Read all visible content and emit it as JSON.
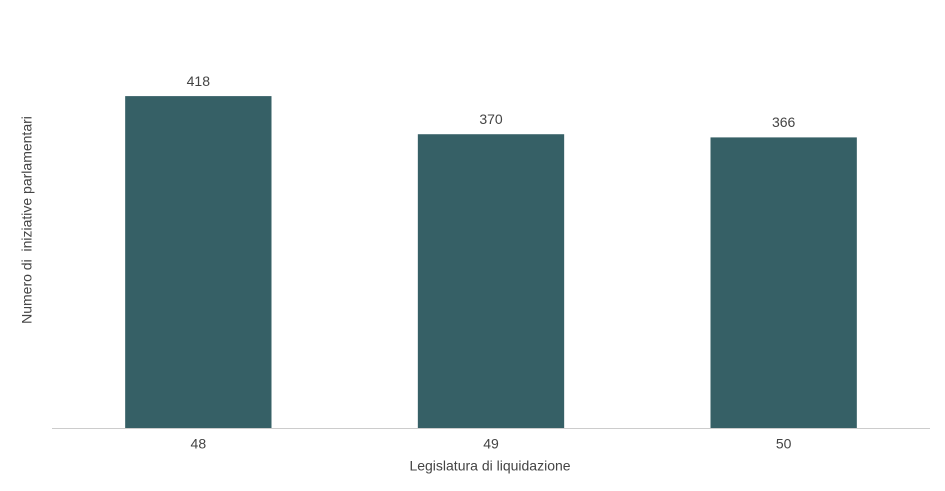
{
  "chart_data": {
    "type": "bar",
    "x_label": "Legislatura di liquidazione",
    "y_label": "Numero di  iniziative parlamentari",
    "categories": [
      "48",
      "49",
      "50"
    ],
    "values": [
      418,
      370,
      366
    ],
    "color": "#366066",
    "ylim": [
      0,
      500
    ],
    "grid": false,
    "data_labels": true
  }
}
